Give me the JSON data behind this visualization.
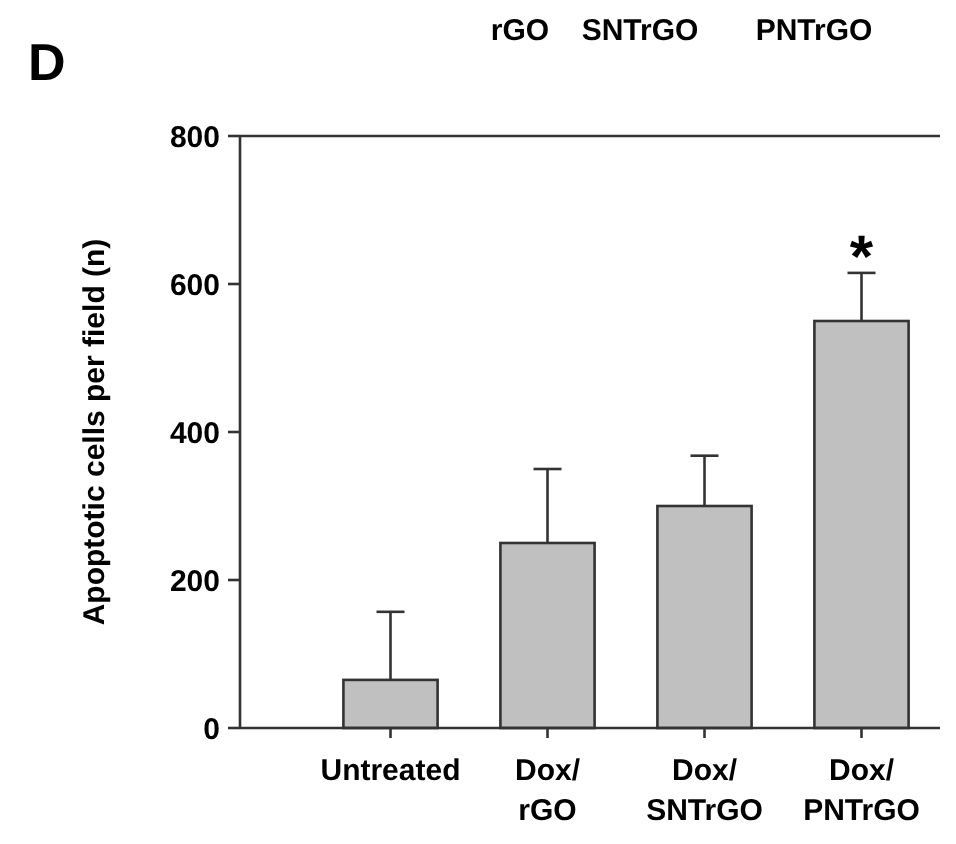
{
  "chart_data": {
    "type": "bar",
    "title": "D",
    "ylabel": "Apoptotic cells per field (n)",
    "categories": [
      "Untreated",
      "Dox/\nrGO",
      "Dox/\nSNTrGO",
      "Dox/\nPNTrGO"
    ],
    "values": [
      65,
      250,
      300,
      550
    ],
    "errors": [
      92,
      100,
      68,
      65
    ],
    "color": "#c0c0c0",
    "ylim": [
      0,
      800
    ],
    "yticks": [
      0,
      200,
      400,
      600,
      800
    ],
    "annotations": [
      "rGO SNTrGO PNTrGO",
      {
        "text": "*",
        "x": "Dox/\nPNTrGO",
        "y": 615
      }
    ]
  }
}
